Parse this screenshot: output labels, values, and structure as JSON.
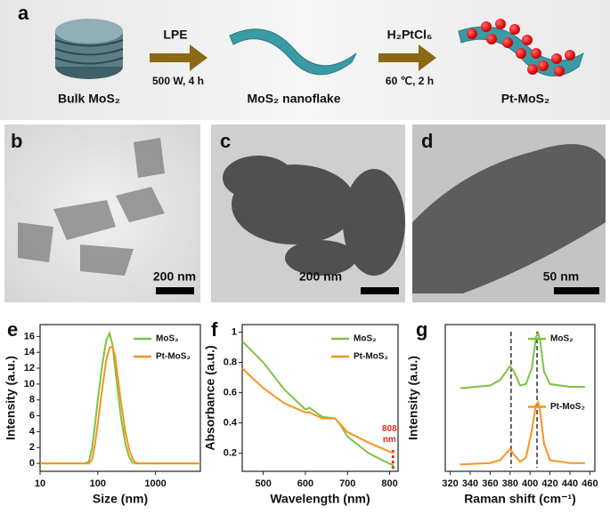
{
  "scheme": {
    "panel_label": "a",
    "start": "Bulk MoS₂",
    "step1_top": "LPE",
    "step1_bottom": "500 W, 4 h",
    "middle": "MoS₂ nanoflake",
    "step2_top": "H₂PtCl₆",
    "step2_bottom": "60 ℃, 2 h",
    "end": "Pt-MoS₂"
  },
  "micrographs": [
    {
      "panel_label": "b",
      "scale_bar": "200 nm"
    },
    {
      "panel_label": "c",
      "scale_bar": "200 nm"
    },
    {
      "panel_label": "d",
      "scale_bar": "50 nm"
    }
  ],
  "chart_data": [
    {
      "type": "line",
      "panel_label": "e",
      "x_label": "Size (nm)",
      "y_label": "Intensity (a.u.)",
      "xscale": "log",
      "xlim": [
        10,
        6000
      ],
      "xticks": [
        10,
        100,
        1000
      ],
      "ylim": [
        -1,
        17.5
      ],
      "yticks": [
        0,
        2,
        4,
        6,
        8,
        10,
        12,
        14,
        16
      ],
      "legend": "upper right",
      "x": [
        10,
        60,
        70,
        80,
        90,
        100,
        120,
        140,
        160,
        180,
        200,
        250,
        300,
        350,
        400,
        450,
        500,
        1000,
        6000
      ],
      "series": [
        {
          "name": "MoS₂",
          "color": "#7ec242",
          "values": [
            0,
            0,
            0.2,
            2,
            5,
            8,
            12.5,
            15.5,
            16.4,
            15,
            12,
            6,
            2.5,
            0.8,
            0.1,
            0,
            0,
            0,
            0
          ]
        },
        {
          "name": "Pt-MoS₂",
          "color": "#f7941d",
          "values": [
            0,
            0,
            0,
            0.5,
            2.5,
            5,
            9.5,
            13,
            14.6,
            14.7,
            13.5,
            8,
            4,
            1.8,
            0.6,
            0.1,
            0,
            0,
            0
          ]
        }
      ]
    },
    {
      "type": "line",
      "panel_label": "f",
      "x_label": "Wavelength (nm)",
      "y_label": "Absorbance (a.u.)",
      "xlim": [
        450,
        820
      ],
      "xticks": [
        500,
        600,
        700,
        800
      ],
      "ylim": [
        0.08,
        1.05
      ],
      "yticks": [
        0.2,
        0.4,
        0.6,
        0.8,
        1.0
      ],
      "legend": "upper right",
      "annotation_x": 808,
      "annotation": [
        "808",
        "nm"
      ],
      "annotation_color": "#d9301c",
      "x": [
        450,
        500,
        550,
        600,
        610,
        640,
        670,
        680,
        700,
        750,
        800,
        810
      ],
      "series": [
        {
          "name": "MoS₂",
          "color": "#7ec242",
          "values": [
            0.94,
            0.8,
            0.62,
            0.49,
            0.5,
            0.44,
            0.43,
            0.4,
            0.31,
            0.2,
            0.13,
            0.12
          ]
        },
        {
          "name": "Pt-MoS₂",
          "color": "#f7941d",
          "values": [
            0.76,
            0.63,
            0.53,
            0.47,
            0.47,
            0.43,
            0.43,
            0.4,
            0.34,
            0.27,
            0.21,
            0.2
          ]
        }
      ]
    },
    {
      "type": "line",
      "panel_label": "g",
      "x_label": "Raman shift (cm⁻¹)",
      "y_label": "Intensity (a.u.)",
      "xlim": [
        315,
        465
      ],
      "xticks": [
        320,
        340,
        360,
        380,
        400,
        420,
        440,
        460
      ],
      "ylim": [
        0,
        1.06
      ],
      "reference_lines": [
        381,
        407
      ],
      "x": [
        330,
        360,
        370,
        376,
        380,
        384,
        390,
        396,
        402,
        406,
        408,
        410,
        414,
        420,
        440,
        455
      ],
      "series": [
        {
          "name": "MoS₂",
          "color": "#7ec242",
          "legend_loc": "upper right",
          "values": [
            0.6,
            0.62,
            0.66,
            0.72,
            0.76,
            0.72,
            0.62,
            0.63,
            0.75,
            0.97,
            1.0,
            0.95,
            0.72,
            0.63,
            0.61,
            0.61
          ]
        },
        {
          "name": "Pt-MoS₂",
          "color": "#f7941d",
          "legend_loc": "center right",
          "values": [
            0.05,
            0.06,
            0.08,
            0.13,
            0.16,
            0.12,
            0.07,
            0.1,
            0.3,
            0.48,
            0.5,
            0.44,
            0.2,
            0.08,
            0.06,
            0.06
          ]
        }
      ]
    }
  ]
}
